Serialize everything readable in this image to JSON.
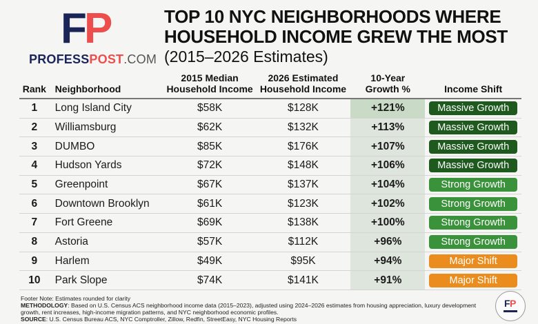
{
  "brand": {
    "mark_f": "F",
    "mark_p": "P",
    "name_part1": "PROFESS",
    "name_part2": "POST",
    "name_part3": ".COM",
    "colors": {
      "navy": "#1b2457",
      "red": "#ec4e4d"
    }
  },
  "title": {
    "line1": "TOP 10 NYC NEIGHBORHOODS WHERE",
    "line2": "HOUSEHOLD INCOME GREW THE MOST",
    "subtitle": "(2015–2026 Estimates)"
  },
  "chart_data": {
    "type": "table",
    "title": "Top 10 NYC Neighborhoods Where Household Income Grew the Most (2015–2026 Estimates)",
    "columns": [
      "Rank",
      "Neighborhood",
      "2015 Median Household Income",
      "2026 Estimated Household Income",
      "10-Year Growth %",
      "Income Shift"
    ],
    "header": {
      "rank": "Rank",
      "neighborhood": "Neighborhood",
      "income_2015_l1": "2015 Median",
      "income_2015_l2": "Household Income",
      "income_2026_l1": "2026 Estimated",
      "income_2026_l2": "Household Income",
      "growth_l1": "10-Year",
      "growth_l2": "Growth %",
      "shift": "Income Shift"
    },
    "rows": [
      {
        "rank": "1",
        "neighborhood": "Long Island City",
        "income_2015": "$58K",
        "income_2026": "$128K",
        "growth": "+121%",
        "shift": "Massive Growth",
        "shift_color": "#1e5a1e"
      },
      {
        "rank": "2",
        "neighborhood": "Williamsburg",
        "income_2015": "$62K",
        "income_2026": "$132K",
        "growth": "+113%",
        "shift": "Massive Growth",
        "shift_color": "#1e5a1e"
      },
      {
        "rank": "3",
        "neighborhood": "DUMBO",
        "income_2015": "$85K",
        "income_2026": "$176K",
        "growth": "+107%",
        "shift": "Massive Growth",
        "shift_color": "#1e5a1e"
      },
      {
        "rank": "4",
        "neighborhood": "Hudson Yards",
        "income_2015": "$72K",
        "income_2026": "$148K",
        "growth": "+106%",
        "shift": "Massive Growth",
        "shift_color": "#1e5a1e"
      },
      {
        "rank": "5",
        "neighborhood": "Greenpoint",
        "income_2015": "$67K",
        "income_2026": "$137K",
        "growth": "+104%",
        "shift": "Strong Growth",
        "shift_color": "#3a933a"
      },
      {
        "rank": "6",
        "neighborhood": "Downtown Brooklyn",
        "income_2015": "$61K",
        "income_2026": "$123K",
        "growth": "+102%",
        "shift": "Strong Growth",
        "shift_color": "#3a933a"
      },
      {
        "rank": "7",
        "neighborhood": "Fort Greene",
        "income_2015": "$69K",
        "income_2026": "$138K",
        "growth": "+100%",
        "shift": "Strong Growth",
        "shift_color": "#3a933a"
      },
      {
        "rank": "8",
        "neighborhood": "Astoria",
        "income_2015": "$57K",
        "income_2026": "$112K",
        "growth": "+96%",
        "shift": "Strong Growth",
        "shift_color": "#3a933a"
      },
      {
        "rank": "9",
        "neighborhood": "Harlem",
        "income_2015": "$49K",
        "income_2026": "$95K",
        "growth": "+94%",
        "shift": "Major Shift",
        "shift_color": "#ea8c1e"
      },
      {
        "rank": "10",
        "neighborhood": "Park Slope",
        "income_2015": "$74K",
        "income_2026": "$141K",
        "growth": "+91%",
        "shift": "Major Shift",
        "shift_color": "#ea8c1e"
      }
    ]
  },
  "footer": {
    "note": "Footer Note: Estimates rounded for clarity",
    "methodology_label": "METHODOLOGY",
    "methodology_text": ": Based on U.S. Census ACS neighborhood income data (2015–2023), adjusted using 2024–2026 estimates from housing appreciation, luxury development growth, rent increases, high-income migration patterns, and NYC neighborhood economic profiles.",
    "source_label": "SOURCE",
    "source_text": ": U.S. Census Bureau ACS, NYC Comptroller, Zillow, Redfin, StreetEasy, NYC Housing Reports",
    "seal_f": "F",
    "seal_p": "P"
  }
}
